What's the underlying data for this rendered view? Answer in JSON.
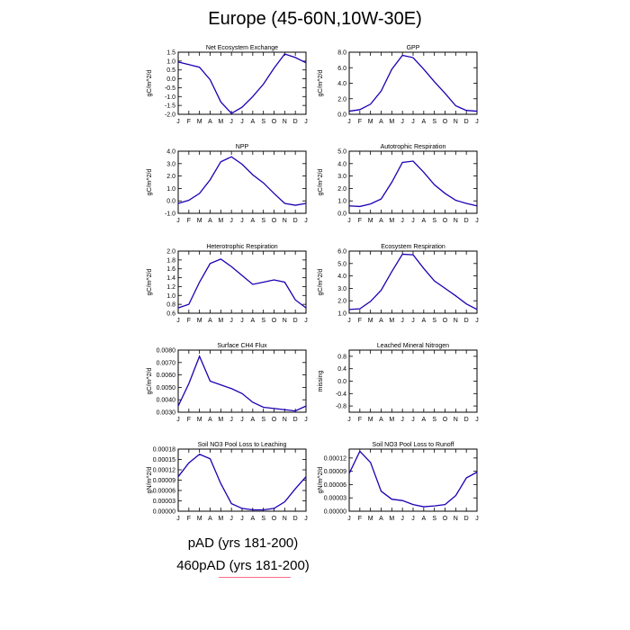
{
  "title": "Europe (45-60N,10W-30E)",
  "legend": {
    "item1": "pAD (yrs 181-200)",
    "item2": "460pAD (yrs 181-200)"
  },
  "colors": {
    "series": "#1a00b3",
    "axis": "#000000",
    "legend_line": "#ff6b8a"
  },
  "months": [
    "J",
    "F",
    "M",
    "A",
    "M",
    "J",
    "J",
    "A",
    "S",
    "O",
    "N",
    "D",
    "J"
  ],
  "chart_data": [
    {
      "type": "line",
      "title": "Net Ecosystem Exchange",
      "ylabel": "gC/m^2/d",
      "ylim": [
        -2.0,
        1.5
      ],
      "yticks": [
        1.5,
        1.0,
        0.5,
        0.0,
        -0.5,
        -1.0,
        -1.5,
        -2.0
      ],
      "ytick_labels": [
        "1.5",
        "1.0",
        "0.5",
        "0.0",
        "-0.5",
        "-1.0",
        "-1.5",
        "-2.0"
      ],
      "values": [
        0.95,
        0.8,
        0.65,
        -0.05,
        -1.3,
        -1.95,
        -1.6,
        -1.0,
        -0.3,
        0.6,
        1.4,
        1.2,
        0.9
      ]
    },
    {
      "type": "line",
      "title": "GPP",
      "ylabel": "gC/m^2/d",
      "ylim": [
        0.0,
        8.0
      ],
      "yticks": [
        8.0,
        6.0,
        4.0,
        2.0,
        0.0
      ],
      "ytick_labels": [
        "8.0",
        "6.0",
        "4.0",
        "2.0",
        "0.0"
      ],
      "values": [
        0.4,
        0.6,
        1.3,
        3.0,
        5.8,
        7.6,
        7.3,
        5.8,
        4.2,
        2.7,
        1.1,
        0.5,
        0.4
      ]
    },
    {
      "type": "line",
      "title": "NPP",
      "ylabel": "gC/m^2/d",
      "ylim": [
        -1.0,
        4.0
      ],
      "yticks": [
        4.0,
        3.0,
        2.0,
        1.0,
        0.0,
        -1.0
      ],
      "ytick_labels": [
        "4.0",
        "3.0",
        "2.0",
        "1.0",
        "0.0",
        "-1.0"
      ],
      "values": [
        -0.2,
        0.05,
        0.6,
        1.7,
        3.15,
        3.55,
        2.95,
        2.1,
        1.45,
        0.6,
        -0.2,
        -0.35,
        -0.2
      ]
    },
    {
      "type": "line",
      "title": "Autotrophic Respiration",
      "ylabel": "gC/m^2/d",
      "ylim": [
        0.0,
        5.0
      ],
      "yticks": [
        5.0,
        4.0,
        3.0,
        2.0,
        1.0,
        0.0
      ],
      "ytick_labels": [
        "5.0",
        "4.0",
        "3.0",
        "2.0",
        "1.0",
        "0.0"
      ],
      "values": [
        0.6,
        0.55,
        0.75,
        1.15,
        2.5,
        4.1,
        4.2,
        3.3,
        2.3,
        1.6,
        1.05,
        0.8,
        0.6
      ]
    },
    {
      "type": "line",
      "title": "Heterotrophic Respiration",
      "ylabel": "gC/m^2/d",
      "ylim": [
        0.6,
        2.0
      ],
      "yticks": [
        2.0,
        1.8,
        1.6,
        1.4,
        1.2,
        1.0,
        0.8,
        0.6
      ],
      "ytick_labels": [
        "2.0",
        "1.8",
        "1.6",
        "1.4",
        "1.2",
        "1.0",
        "0.8",
        "0.6"
      ],
      "values": [
        0.72,
        0.8,
        1.3,
        1.72,
        1.82,
        1.65,
        1.45,
        1.25,
        1.3,
        1.35,
        1.3,
        0.9,
        0.72
      ]
    },
    {
      "type": "line",
      "title": "Ecosystem Respiration",
      "ylabel": "gC/m^2/d",
      "ylim": [
        1.0,
        6.0
      ],
      "yticks": [
        6.0,
        5.0,
        4.0,
        3.0,
        2.0,
        1.0
      ],
      "ytick_labels": [
        "6.0",
        "5.0",
        "4.0",
        "3.0",
        "2.0",
        "1.0"
      ],
      "values": [
        1.3,
        1.35,
        1.95,
        2.85,
        4.35,
        5.75,
        5.7,
        4.6,
        3.6,
        3.0,
        2.4,
        1.75,
        1.3
      ]
    },
    {
      "type": "line",
      "title": "Surface CH4 Flux",
      "ylabel": "gC/m^2/d",
      "ylim": [
        0.003,
        0.008
      ],
      "yticks": [
        0.008,
        0.007,
        0.006,
        0.005,
        0.004,
        0.003
      ],
      "ytick_labels": [
        "0.0080",
        "0.0070",
        "0.0060",
        "0.0050",
        "0.0040",
        "0.0030"
      ],
      "values": [
        0.0035,
        0.0053,
        0.0075,
        0.0055,
        0.0052,
        0.0049,
        0.0045,
        0.0038,
        0.0034,
        0.0033,
        0.0032,
        0.0031,
        0.0035
      ]
    },
    {
      "type": "line",
      "title": "Leached Mineral Nitrogen",
      "ylabel": "missing",
      "ylim": [
        -1.0,
        1.0
      ],
      "yticks": [
        0.8,
        0.4,
        0.0,
        -0.4,
        -0.8
      ],
      "ytick_labels": [
        "0.8",
        "0.4",
        "0.0",
        "-0.4",
        "-0.8"
      ],
      "values": []
    },
    {
      "type": "line",
      "title": "Soil NO3 Pool Loss to Leaching",
      "ylabel": "gN/m^2/d",
      "ylim": [
        0.0,
        0.00018
      ],
      "yticks": [
        0.00018,
        0.00015,
        0.00012,
        9e-05,
        6e-05,
        3e-05,
        0.0
      ],
      "ytick_labels": [
        "0.00018",
        "0.00015",
        "0.00012",
        "0.00009",
        "0.00006",
        "0.00003",
        "0.00000"
      ],
      "values": [
        0.0001,
        0.00014,
        0.000165,
        0.000152,
        8e-05,
        2.2e-05,
        8e-06,
        4e-06,
        4e-06,
        8e-06,
        2.7e-05,
        6.5e-05,
        0.0001
      ]
    },
    {
      "type": "line",
      "title": "Soil NO3 Pool Loss to Runoff",
      "ylabel": "gN/m^2/d",
      "ylim": [
        0.0,
        0.00014
      ],
      "yticks": [
        0.00012,
        9e-05,
        6e-05,
        3e-05,
        0.0
      ],
      "ytick_labels": [
        "0.00012",
        "0.00009",
        "0.00006",
        "0.00003",
        "0.00000"
      ],
      "values": [
        8.5e-05,
        0.000135,
        0.00011,
        4.5e-05,
        2.7e-05,
        2.4e-05,
        1.5e-05,
        1e-05,
        1.2e-05,
        1.5e-05,
        3.5e-05,
        7.5e-05,
        8.8e-05
      ]
    }
  ]
}
